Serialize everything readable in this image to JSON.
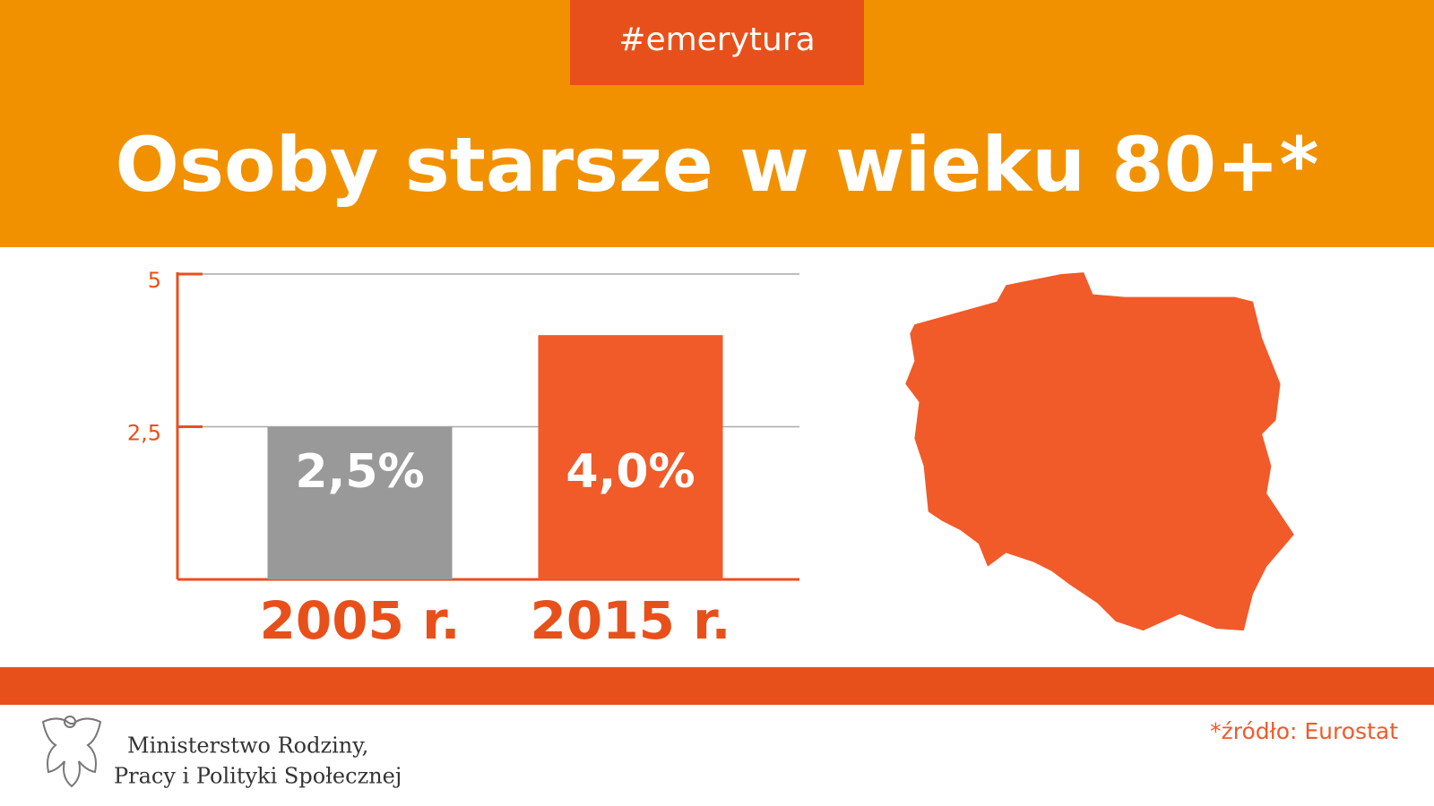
{
  "header": {
    "tag": "#emerytura"
  },
  "chart_data": {
    "type": "bar",
    "title": "Osoby starsze w wieku 80+*",
    "categories": [
      "2005 r.",
      "2015 r."
    ],
    "values": [
      2.5,
      4.0
    ],
    "value_labels": [
      "2,5%",
      "4,0%"
    ],
    "colors": [
      "#999999",
      "#f15a29"
    ],
    "ylim": [
      0,
      5
    ],
    "yticks": [
      {
        "value": 2.5,
        "label": "2,5"
      },
      5
    ],
    "grid": true
  },
  "footer": {
    "source": "*źródło: Eurostat",
    "ministry": [
      "Ministerstwo Rodziny,",
      "Pracy i Polityki Społecznej"
    ]
  }
}
